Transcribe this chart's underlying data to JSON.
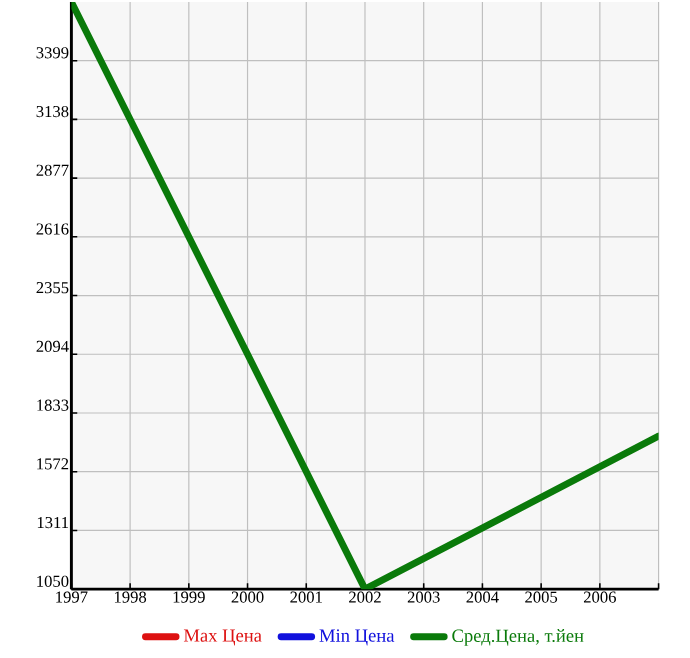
{
  "chart_data": {
    "type": "line",
    "x": [
      1997,
      2002,
      2007
    ],
    "series": [
      {
        "name": "Max Цена",
        "color": "#dd1111",
        "values": [
          null,
          null,
          null
        ]
      },
      {
        "name": "Min Цена",
        "color": "#1111dd",
        "values": [
          null,
          null,
          null
        ]
      },
      {
        "name": "Сред.Цена, т.йен",
        "color": "#0a7a0a",
        "values": [
          3660,
          1050,
          1730
        ]
      }
    ],
    "xlim": [
      1997,
      2007
    ],
    "xticks": [
      1997,
      1998,
      1999,
      2000,
      2001,
      2002,
      2003,
      2004,
      2005,
      2006,
      {
        "value": 2007,
        "label": null
      }
    ],
    "ylim": [
      1050,
      3660
    ],
    "yticks": [
      1050,
      1311,
      1572,
      1833,
      2094,
      2355,
      2616,
      2877,
      3138,
      3399
    ],
    "grid": true,
    "legend": "bottom",
    "marker": "none",
    "line_style": "solid"
  }
}
